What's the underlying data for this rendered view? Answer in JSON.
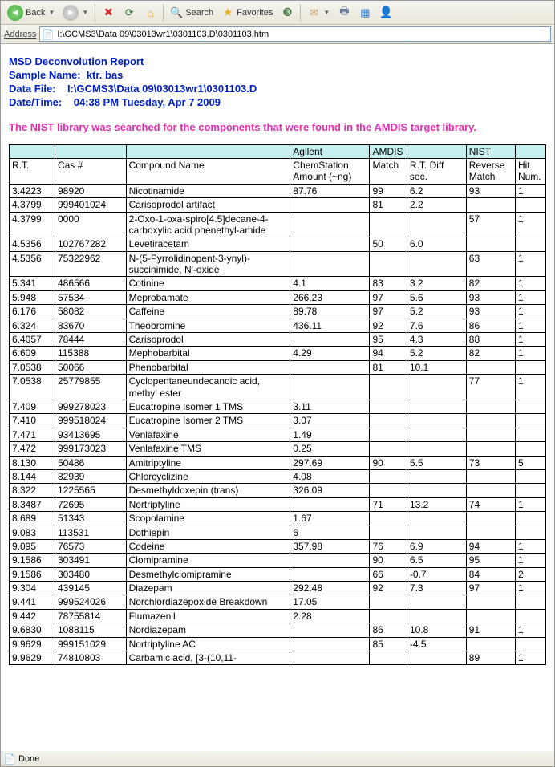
{
  "toolbar": {
    "back_label": "Back",
    "search_label": "Search",
    "favorites_label": "Favorites"
  },
  "addressbar": {
    "label": "Address",
    "value": "I:\\GCMS3\\Data 09\\03013wr1\\0301103.D\\0301103.htm"
  },
  "report": {
    "title": "MSD Deconvolution Report",
    "sample_label": "Sample Name:",
    "sample_value": "ktr. bas",
    "datafile_label": "Data File:",
    "datafile_value": "I:\\GCMS3\\Data 09\\03013wr1\\0301103.D",
    "datetime_label": "Date/Time:",
    "datetime_value": "04:38 PM  Tuesday, Apr 7 2009",
    "note": "The NIST library was searched for the components that were found in the AMDIS target library."
  },
  "table": {
    "group_headers": [
      "",
      "",
      "",
      "Agilent",
      "AMDIS",
      "",
      "NIST",
      ""
    ],
    "group_spans": [
      1,
      1,
      1,
      1,
      1,
      1,
      1,
      1
    ],
    "col_headers": [
      "R.T.",
      "Cas #",
      "Compound Name",
      "ChemStation Amount (~ng)",
      "Match",
      "R.T. Diff sec.",
      "Reverse Match",
      "Hit Num."
    ],
    "rows": [
      [
        "3.4223",
        "98920",
        "Nicotinamide",
        "87.76",
        "99",
        "6.2",
        "93",
        "1"
      ],
      [
        "4.3799",
        "999401024",
        "Carisoprodol artifact",
        "",
        "81",
        "2.2",
        "",
        ""
      ],
      [
        "4.3799",
        "0000",
        "2-Oxo-1-oxa-spiro[4.5]decane-4-carboxylic acid phenethyl-amide",
        "",
        "",
        "",
        "57",
        "1"
      ],
      [
        "4.5356",
        "102767282",
        "Levetiracetam",
        "",
        "50",
        "6.0",
        "",
        ""
      ],
      [
        "4.5356",
        "75322962",
        "N-(5-Pyrrolidinopent-3-ynyl)-succinimide, N'-oxide",
        "",
        "",
        "",
        "63",
        "1"
      ],
      [
        "5.341",
        "486566",
        "Cotinine",
        "4.1",
        "83",
        "3.2",
        "82",
        "1"
      ],
      [
        "5.948",
        "57534",
        "Meprobamate",
        "266.23",
        "97",
        "5.6",
        "93",
        "1"
      ],
      [
        "6.176",
        "58082",
        "Caffeine",
        "89.78",
        "97",
        "5.2",
        "93",
        "1"
      ],
      [
        "6.324",
        "83670",
        "Theobromine",
        "436.11",
        "92",
        "7.6",
        "86",
        "1"
      ],
      [
        "6.4057",
        "78444",
        "Carisoprodol",
        "",
        "95",
        "4.3",
        "88",
        "1"
      ],
      [
        "6.609",
        "115388",
        "Mephobarbital",
        "4.29",
        "94",
        "5.2",
        "82",
        "1"
      ],
      [
        "7.0538",
        "50066",
        "Phenobarbital",
        "",
        "81",
        "10.1",
        "",
        ""
      ],
      [
        "7.0538",
        "25779855",
        "Cyclopentaneundecanoic acid, methyl ester",
        "",
        "",
        "",
        "77",
        "1"
      ],
      [
        "7.409",
        "999278023",
        "Eucatropine Isomer 1 TMS",
        "3.11",
        "",
        "",
        "",
        ""
      ],
      [
        "7.410",
        "999518024",
        "Eucatropine Isomer 2 TMS",
        "3.07",
        "",
        "",
        "",
        ""
      ],
      [
        "7.471",
        "93413695",
        "Venlafaxine",
        "1.49",
        "",
        "",
        "",
        ""
      ],
      [
        "7.472",
        "999173023",
        "Venlafaxine TMS",
        "0.25",
        "",
        "",
        "",
        ""
      ],
      [
        "8.130",
        "50486",
        "Amitriptyline",
        "297.69",
        "90",
        "5.5",
        "73",
        "5"
      ],
      [
        "8.144",
        "82939",
        "Chlorcyclizine",
        "4.08",
        "",
        "",
        "",
        ""
      ],
      [
        "8.322",
        "1225565",
        "Desmethyldoxepin (trans)",
        "326.09",
        "",
        "",
        "",
        ""
      ],
      [
        "8.3487",
        "72695",
        "Nortriptyline",
        "",
        "71",
        "13.2",
        "74",
        "1"
      ],
      [
        "8.689",
        "51343",
        "Scopolamine",
        "1.67",
        "",
        "",
        "",
        ""
      ],
      [
        "9.083",
        "113531",
        "Dothiepin",
        "6",
        "",
        "",
        "",
        ""
      ],
      [
        "9.095",
        "76573",
        "Codeine",
        "357.98",
        "76",
        "6.9",
        "94",
        "1"
      ],
      [
        "9.1586",
        "303491",
        "Clomipramine",
        "",
        "90",
        "6.5",
        "95",
        "1"
      ],
      [
        "9.1586",
        "303480",
        "Desmethylclomipramine",
        "",
        "66",
        "-0.7",
        "84",
        "2"
      ],
      [
        "9.304",
        "439145",
        "Diazepam",
        "292.48",
        "92",
        "7.3",
        "97",
        "1"
      ],
      [
        "9.441",
        "999524026",
        "Norchlordiazepoxide Breakdown",
        "17.05",
        "",
        "",
        "",
        ""
      ],
      [
        "9.442",
        "78755814",
        "Flumazenil",
        "2.28",
        "",
        "",
        "",
        ""
      ],
      [
        "9.6830",
        "1088115",
        "Nordiazepam",
        "",
        "86",
        "10.8",
        "91",
        "1"
      ],
      [
        "9.9629",
        "999151029",
        "Nortriptyline AC",
        "",
        "85",
        "-4.5",
        "",
        ""
      ],
      [
        "9.9629",
        "74810803",
        "Carbamic acid, [3-(10,11-",
        "",
        "",
        "",
        "89",
        "1"
      ]
    ]
  },
  "statusbar": {
    "text": "Done"
  }
}
